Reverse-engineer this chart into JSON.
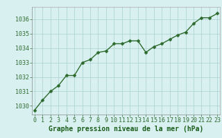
{
  "x": [
    0,
    1,
    2,
    3,
    4,
    5,
    6,
    7,
    8,
    9,
    10,
    11,
    12,
    13,
    14,
    15,
    16,
    17,
    18,
    19,
    20,
    21,
    22,
    23
  ],
  "y": [
    1029.7,
    1030.4,
    1031.0,
    1031.4,
    1032.1,
    1032.1,
    1033.0,
    1033.2,
    1033.7,
    1033.8,
    1034.3,
    1034.3,
    1034.5,
    1034.5,
    1033.7,
    1034.1,
    1034.3,
    1034.6,
    1034.9,
    1035.1,
    1035.7,
    1036.1,
    1036.1,
    1036.4
  ],
  "line_color": "#2d6a2d",
  "marker": "D",
  "marker_size": 2.5,
  "line_width": 1.0,
  "bg_color": "#d8f0f0",
  "grid_color": "#b0d4d4",
  "xlabel": "Graphe pression niveau de la mer (hPa)",
  "xlabel_color": "#1a5c1a",
  "xlabel_fontsize": 7,
  "tick_color": "#2d6a2d",
  "tick_fontsize": 6,
  "ylim": [
    1029.4,
    1036.85
  ],
  "yticks": [
    1030,
    1031,
    1032,
    1033,
    1034,
    1035,
    1036
  ],
  "xlim": [
    -0.3,
    23.3
  ],
  "xticks": [
    0,
    1,
    2,
    3,
    4,
    5,
    6,
    7,
    8,
    9,
    10,
    11,
    12,
    13,
    14,
    15,
    16,
    17,
    18,
    19,
    20,
    21,
    22,
    23
  ]
}
